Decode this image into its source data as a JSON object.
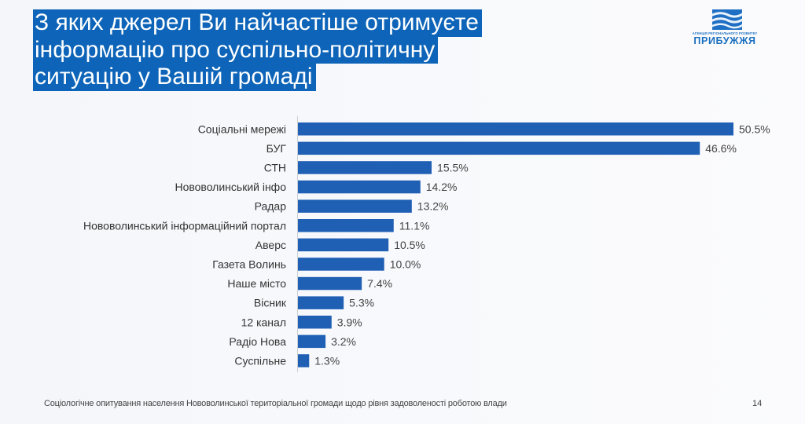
{
  "title": {
    "lines": [
      "З яких джерел Ви найчастіше отримуєте",
      "інформацію про суспільно-політичну",
      "ситуацію у Вашій громаді"
    ]
  },
  "logo": {
    "tagline": "АГЕНЦІЯ РЕГІОНАЛЬНОГО РОЗВИТКУ",
    "name": "ПРИБУЖЖЯ"
  },
  "chart_data": {
    "type": "bar",
    "orientation": "horizontal",
    "title": "З яких джерел Ви найчастіше отримуєте інформацію про суспільно-політичну ситуацію у Вашій громаді",
    "xlabel": "",
    "ylabel": "",
    "unit": "%",
    "xlim": [
      0,
      50.5
    ],
    "grid": false,
    "bar_color": "#1f5fb4",
    "categories": [
      "Соціальні мережі",
      "БУГ",
      "СТН",
      "Нововолинський інфо",
      "Радар",
      "Нововолинський інформаційний портал",
      "Аверс",
      "Газета Волинь",
      "Наше місто",
      "Вісник",
      "12 канал",
      "Радіо Нова",
      "Суспільне"
    ],
    "values": [
      50.5,
      46.6,
      15.5,
      14.2,
      13.2,
      11.1,
      10.5,
      10.0,
      7.4,
      5.3,
      3.9,
      3.2,
      1.3
    ],
    "labels": [
      "50.5%",
      "46.6%",
      "15.5%",
      "14.2%",
      "13.2%",
      "11.1%",
      "10.5%",
      "10.0%",
      "7.4%",
      "5.3%",
      "3.9%",
      "3.2%",
      "1.3%"
    ]
  },
  "footer": {
    "text": "Соціологічне опитування населення Нововолинської територіальної громади щодо рівня задоволеності роботою влади",
    "page_number": "14"
  }
}
